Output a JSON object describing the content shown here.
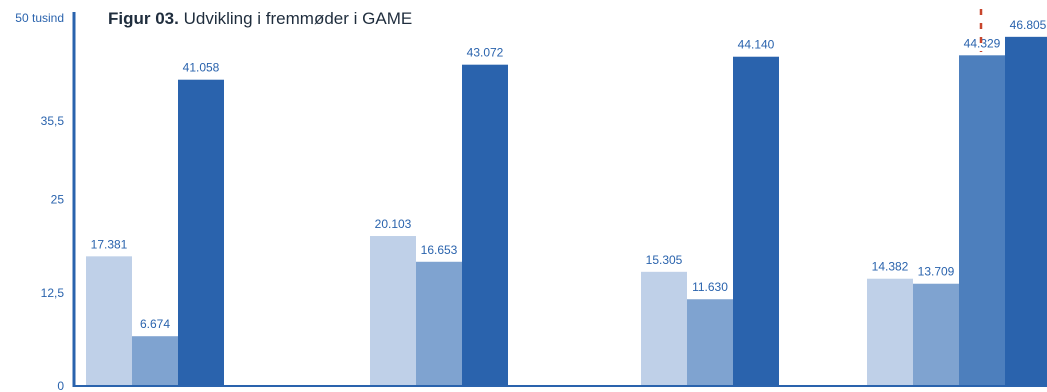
{
  "title": {
    "prefix": "Figur 03.",
    "text": "Udvikling i fremmøder i GAME"
  },
  "colors": {
    "series": [
      "#bfd0e8",
      "#7fa3d0",
      "#4d7fbd",
      "#2a63ad"
    ],
    "axis": "#2a63ad",
    "label": "#2a63ad",
    "marker": "#c8452c"
  },
  "chart_data": {
    "type": "bar",
    "title": "Figur 03. Udvikling i fremmøder i GAME",
    "xlabel": "",
    "ylabel": "",
    "ylim": [
      0,
      50000
    ],
    "yticks": [
      {
        "value": 0,
        "label": "0"
      },
      {
        "value": 12500,
        "label": "12,5"
      },
      {
        "value": 25000,
        "label": "25"
      },
      {
        "value": 35500,
        "label": "35,5"
      },
      {
        "value": 50000,
        "label": "50 tusind"
      }
    ],
    "groups": [
      {
        "bars": [
          {
            "series": 0,
            "value": 17381,
            "label": "17.381"
          },
          {
            "series": 1,
            "value": 6674,
            "label": "6.674"
          },
          {
            "series": 3,
            "value": 41058,
            "label": "41.058"
          }
        ]
      },
      {
        "bars": [
          {
            "series": 0,
            "value": 20103,
            "label": "20.103"
          },
          {
            "series": 1,
            "value": 16653,
            "label": "16.653"
          },
          {
            "series": 3,
            "value": 43072,
            "label": "43.072"
          }
        ]
      },
      {
        "bars": [
          {
            "series": 0,
            "value": 15305,
            "label": "15.305"
          },
          {
            "series": 1,
            "value": 11630,
            "label": "11.630"
          },
          {
            "series": 3,
            "value": 44140,
            "label": "44.140"
          }
        ]
      },
      {
        "bars": [
          {
            "series": 0,
            "value": 14382,
            "label": "14.382"
          },
          {
            "series": 1,
            "value": 13709,
            "label": "13.709"
          },
          {
            "series": 2,
            "value": 44329,
            "label": "44.329"
          },
          {
            "series": 3,
            "value": 46805,
            "label": "46.805"
          }
        ]
      }
    ],
    "grid": false,
    "legend": "none"
  }
}
